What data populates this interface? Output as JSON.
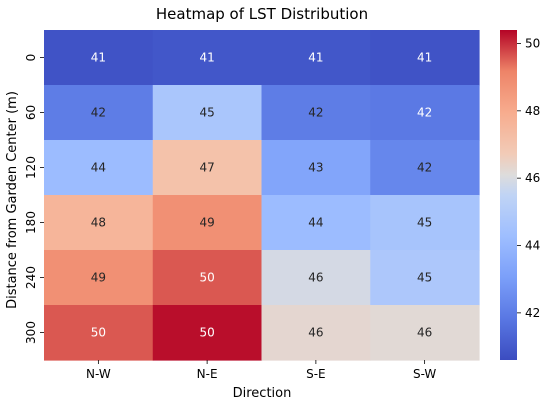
{
  "chart_data": {
    "type": "heatmap",
    "title": "Heatmap of LST Distribution",
    "xlabel": "Direction",
    "ylabel": "Distance from Garden Center (m)",
    "x_categories": [
      "N-W",
      "N-E",
      "S-E",
      "S-W"
    ],
    "y_categories": [
      "0",
      "60",
      "120",
      "180",
      "240",
      "300"
    ],
    "values": [
      [
        41,
        41,
        41,
        41
      ],
      [
        42,
        45,
        42,
        42
      ],
      [
        44,
        47,
        43,
        42
      ],
      [
        48,
        49,
        44,
        45
      ],
      [
        49,
        50,
        46,
        45
      ],
      [
        50,
        50,
        46,
        46
      ]
    ],
    "true_values": [
      [
        40.8,
        40.9,
        40.9,
        40.8
      ],
      [
        42.0,
        44.7,
        42.0,
        41.9
      ],
      [
        44.2,
        47.1,
        43.3,
        42.3
      ],
      [
        47.6,
        48.8,
        44.2,
        44.6
      ],
      [
        48.8,
        49.6,
        45.9,
        44.8
      ],
      [
        49.6,
        50.3,
        46.3,
        46.2
      ]
    ],
    "colorbar": {
      "cmap": "coolwarm",
      "min": 40.6,
      "max": 50.4,
      "ticks": [
        42,
        44,
        46,
        48,
        50
      ]
    },
    "grid": false,
    "legend_position": "right"
  }
}
